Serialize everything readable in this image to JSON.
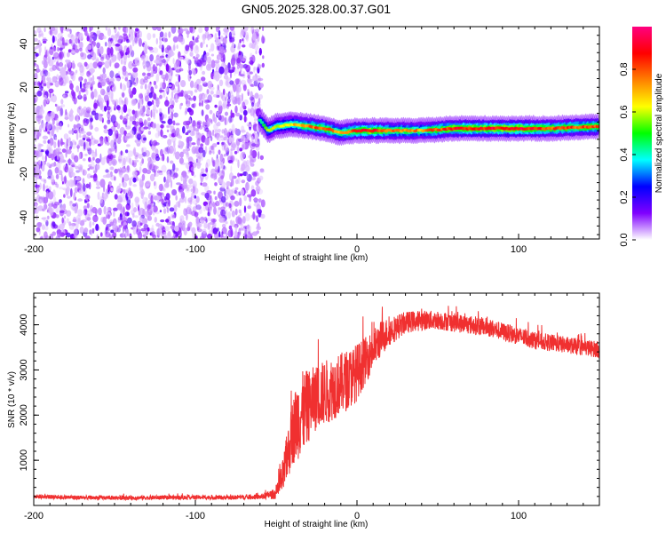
{
  "chart_data": [
    {
      "type": "heatmap",
      "title": "GN05.2025.328.00.37.G01",
      "xlabel": "Height of straight line (km)",
      "ylabel": "Frequency (Hz)",
      "xlim": [
        -200,
        150
      ],
      "ylim": [
        -50,
        48
      ],
      "xticks": [
        -200,
        -100,
        0,
        100
      ],
      "yticks": [
        -40,
        -20,
        0,
        20,
        40
      ],
      "regions": [
        {
          "name": "noise",
          "x_range": [
            -200,
            -58
          ],
          "freq_range": [
            -50,
            48
          ],
          "amplitude": "low scattered (0.05-0.25)"
        },
        {
          "name": "signal-ridge",
          "x_range": [
            -58,
            150
          ],
          "freq_center_hz": 0,
          "amplitude": "high (0.3-0.95)"
        }
      ],
      "ridge": {
        "x": [
          -60,
          -55,
          -50,
          -40,
          -30,
          -20,
          -10,
          0,
          10,
          20,
          40,
          60,
          80,
          100,
          120,
          150
        ],
        "freq": [
          5,
          0,
          2,
          3,
          2,
          1,
          -1,
          0,
          0,
          0,
          0,
          1,
          1,
          1,
          1,
          2
        ],
        "amp": [
          0.4,
          0.55,
          0.6,
          0.65,
          0.75,
          0.8,
          0.7,
          0.85,
          0.9,
          0.75,
          0.72,
          0.85,
          0.88,
          0.9,
          0.8,
          0.8
        ]
      },
      "colorbar": {
        "label": "Normalized spectral amplitude",
        "range": [
          0.0,
          1.0
        ],
        "ticks": [
          0.0,
          0.2,
          0.4,
          0.6,
          0.8
        ],
        "colors": [
          "#ffffff",
          "#8000ff",
          "#0000ff",
          "#00ffff",
          "#00ff00",
          "#ffff00",
          "#ff8000",
          "#ff0000",
          "#ff0080"
        ]
      }
    },
    {
      "type": "line",
      "xlabel": "Height of straight line (km)",
      "ylabel": "SNR (10 * v/v)",
      "xlim": [
        -200,
        150
      ],
      "ylim": [
        0,
        4700
      ],
      "xticks": [
        -200,
        -100,
        0,
        100
      ],
      "yticks": [
        1000,
        2000,
        3000,
        4000
      ],
      "color": "#f03030",
      "series": [
        {
          "name": "SNR",
          "x": [
            -200,
            -180,
            -160,
            -140,
            -120,
            -100,
            -80,
            -60,
            -50,
            -46,
            -43,
            -40,
            -37,
            -35,
            -30,
            -25,
            -20,
            -15,
            -10,
            -5,
            0,
            5,
            10,
            15,
            20,
            25,
            30,
            40,
            50,
            60,
            70,
            80,
            90,
            100,
            110,
            120,
            130,
            140,
            150
          ],
          "y": [
            200,
            180,
            170,
            170,
            175,
            180,
            175,
            190,
            260,
            600,
            1100,
            1600,
            1900,
            2000,
            2200,
            2400,
            2500,
            2600,
            2700,
            2800,
            2950,
            3200,
            3450,
            3700,
            3850,
            3950,
            4050,
            4100,
            4100,
            4050,
            4000,
            3950,
            3850,
            3750,
            3650,
            3600,
            3550,
            3500,
            3450
          ],
          "spread": [
            60,
            60,
            60,
            60,
            60,
            60,
            60,
            70,
            150,
            500,
            700,
            900,
            1100,
            1200,
            1000,
            900,
            900,
            900,
            850,
            850,
            800,
            650,
            550,
            500,
            400,
            350,
            300,
            280,
            260,
            260,
            260,
            260,
            250,
            250,
            240,
            240,
            230,
            230,
            230
          ]
        }
      ]
    }
  ]
}
